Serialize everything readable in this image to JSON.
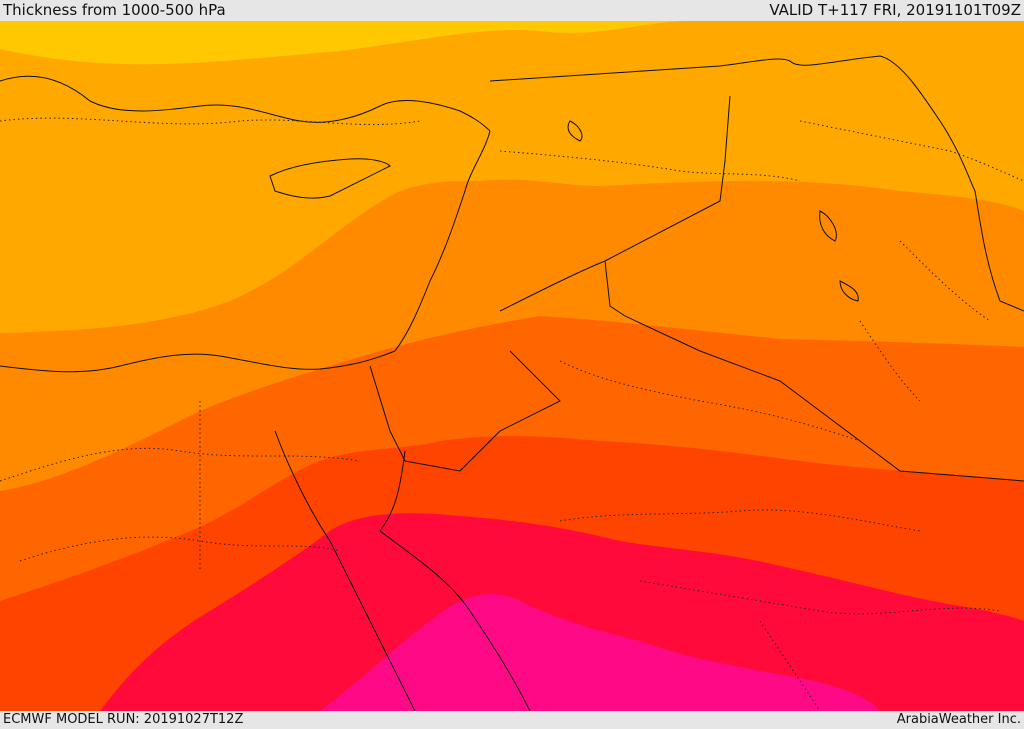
{
  "header": {
    "title": "Thickness from 1000-500 hPa",
    "valid": "VALID T+117 FRI, 20191101T09Z"
  },
  "footer": {
    "model_run": "ECMWF MODEL RUN: 20191027T12Z",
    "credit": "ArabiaWeather Inc."
  },
  "colors": {
    "band_1": "#ffc800",
    "band_2": "#ffa800",
    "band_3": "#ff8a00",
    "band_4": "#ff6600",
    "band_5": "#ff4400",
    "band_6": "#ff0a3a",
    "band_7": "#ff0a86",
    "border": "#111111"
  }
}
